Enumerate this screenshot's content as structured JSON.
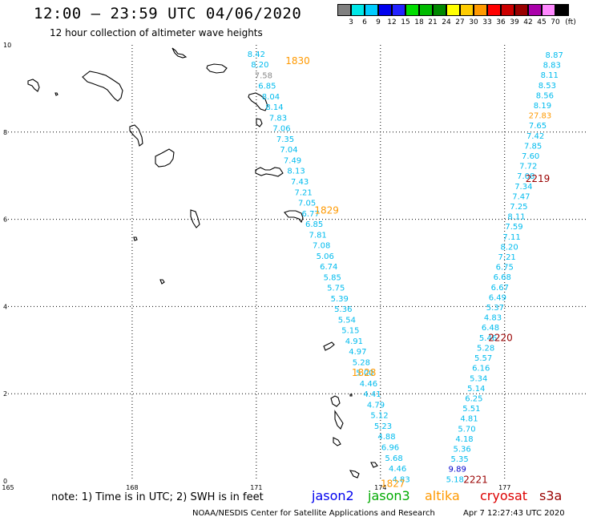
{
  "title": "12:00 – 23:59 UTC 04/06/2020",
  "subtitle": "12 hour collection of altimeter wave heights",
  "colorbar": {
    "unit": "(ft)",
    "labels": [
      "3",
      "6",
      "9",
      "12",
      "15",
      "18",
      "21",
      "24",
      "27",
      "30",
      "33",
      "36",
      "39",
      "42",
      "45",
      "70"
    ],
    "colors": [
      "#808080",
      "#00e8e8",
      "#00ccff",
      "#0000ee",
      "#2222ff",
      "#00dd00",
      "#00bb00",
      "#008800",
      "#ffff00",
      "#ffcc00",
      "#ff9900",
      "#ff0000",
      "#cc0000",
      "#990000",
      "#aa00aa",
      "#ff88ff",
      "#000000"
    ]
  },
  "axes": {
    "x_ticks": [
      {
        "value": 165,
        "label": "165"
      },
      {
        "value": 168,
        "label": "168"
      },
      {
        "value": 171,
        "label": "171"
      },
      {
        "value": 174,
        "label": "174"
      },
      {
        "value": 177,
        "label": "177"
      }
    ],
    "y_ticks": [
      {
        "value": 0,
        "label": "0"
      },
      {
        "value": 2,
        "label": "2"
      },
      {
        "value": 4,
        "label": "4"
      },
      {
        "value": 6,
        "label": "6"
      },
      {
        "value": 8,
        "label": "8"
      },
      {
        "value": 10,
        "label": "10"
      }
    ],
    "x_range": [
      165,
      179
    ],
    "y_range": [
      0,
      10
    ]
  },
  "track_west": {
    "color": "#00bbee",
    "lon_start": 171.0,
    "lat_start": 9.8,
    "lon_end": 174.5,
    "lat_end": 0.05,
    "values": [
      "8.42",
      "8.20",
      "7.58",
      "6.85",
      "8.04",
      "8.14",
      "7.83",
      "7.06",
      "7.35",
      "7.04",
      "7.49",
      "8.13",
      "7.43",
      "7.21",
      "7.05",
      "6.77",
      "6.85",
      "7.81",
      "7.08",
      "5.06",
      "6.74",
      "5.85",
      "5.75",
      "5.39",
      "5.36",
      "5.54",
      "5.15",
      "4.91",
      "4.97",
      "5.28",
      "5.00",
      "4.46",
      "4.41",
      "4.79",
      "5.12",
      "5.23",
      "4.88",
      "6.96",
      "5.68",
      "4.46",
      "4.83"
    ],
    "gray_index": 2
  },
  "track_east": {
    "color": "#00bbee",
    "lon_start": 178.2,
    "lat_start": 9.78,
    "lon_end": 175.8,
    "lat_end": 0.05,
    "values": [
      "8.87",
      "8.83",
      "8.11",
      "8.53",
      "8.56",
      "8.19",
      "27.83",
      "7.65",
      "7.42",
      "7.85",
      "7.60",
      "7.72",
      "7.08",
      "7.34",
      "7.47",
      "7.25",
      "8.11",
      "7.59",
      "7.11",
      "8.20",
      "7.21",
      "6.75",
      "6.68",
      "6.67",
      "6.49",
      "5.37",
      "4.83",
      "6.48",
      "5.46",
      "5.28",
      "5.57",
      "6.16",
      "5.34",
      "5.14",
      "6.25",
      "5.51",
      "4.81",
      "5.70",
      "4.18",
      "5.36",
      "5.35",
      "9.89",
      "5.18"
    ],
    "special": [
      {
        "index": 6,
        "color": "#ff9900"
      },
      {
        "index": 41,
        "color": "#0000cc"
      }
    ]
  },
  "time_labels": [
    {
      "text": "1830",
      "lon": 172.0,
      "lat": 9.65,
      "color": "#ff9900"
    },
    {
      "text": "1829",
      "lon": 172.7,
      "lat": 6.22,
      "color": "#ff9900"
    },
    {
      "text": "1828",
      "lon": 173.6,
      "lat": 2.5,
      "color": "#ff9900"
    },
    {
      "text": "1827",
      "lon": 174.3,
      "lat": -0.05,
      "color": "#ff9900"
    },
    {
      "text": "2219",
      "lon": 177.8,
      "lat": 6.95,
      "color": "#990000"
    },
    {
      "text": "2220",
      "lon": 176.9,
      "lat": 3.3,
      "color": "#990000"
    },
    {
      "text": "2221",
      "lon": 176.3,
      "lat": 0.05,
      "color": "#990000"
    }
  ],
  "note": "note:  1) Time is in UTC;  2) SWH is in feet",
  "legend_sats": [
    {
      "name": "jason2",
      "color": "#0000ee"
    },
    {
      "name": "jason3",
      "color": "#00aa00"
    },
    {
      "name": "altika",
      "color": "#ff9900"
    },
    {
      "name": "cryosat",
      "color": "#dd0000"
    },
    {
      "name": "s3a",
      "color": "#990000"
    }
  ],
  "footer": {
    "center": "NOAA/NESDIS Center for Satellite Applications and Research",
    "time": "Apr  7 12:27:43 UTC 2020"
  }
}
